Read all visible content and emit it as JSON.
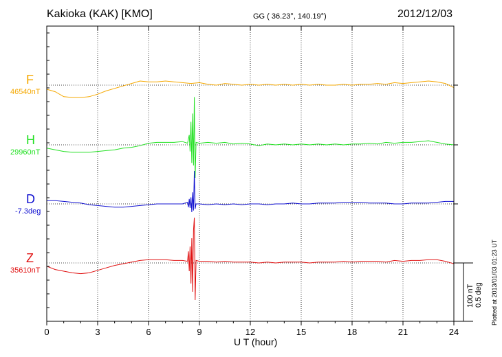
{
  "header": {
    "station": "Kakioka (KAK)  [KMO]",
    "coords": "GG ( 36.23°, 140.19°)",
    "date": "2012/12/03"
  },
  "scale": {
    "nt": "100 nT",
    "deg": "0.5 deg"
  },
  "plotted": "Plotted at 2013/01/03 01:23 UT",
  "chart_data": {
    "type": "line",
    "title": "Kakioka (KAK)  [KMO]",
    "xlabel": "U T (hour)",
    "ylabel": "",
    "xlim": [
      0,
      24
    ],
    "xticks": [
      0,
      3,
      6,
      9,
      12,
      15,
      18,
      21,
      24
    ],
    "grid": true,
    "units_note": "Trace values are offsets from each component's baseline in nT (D in deg*200, i.e. 100 nT = 0.5 deg)",
    "series": [
      {
        "name": "F",
        "baseline_label": "46540nT",
        "color": "#f5a800",
        "points": [
          [
            0,
            -5
          ],
          [
            0.5,
            -8
          ],
          [
            1,
            -14
          ],
          [
            1.5,
            -15
          ],
          [
            2,
            -15
          ],
          [
            2.5,
            -14
          ],
          [
            3,
            -11
          ],
          [
            3.5,
            -7
          ],
          [
            4,
            -4
          ],
          [
            4.5,
            -1
          ],
          [
            5,
            2
          ],
          [
            5.5,
            5
          ],
          [
            6,
            4
          ],
          [
            6.5,
            4
          ],
          [
            7,
            5
          ],
          [
            7.5,
            4
          ],
          [
            8,
            3
          ],
          [
            8.5,
            2
          ],
          [
            9,
            3
          ],
          [
            9.5,
            1
          ],
          [
            10,
            0
          ],
          [
            10.5,
            2
          ],
          [
            11,
            1
          ],
          [
            11.5,
            0
          ],
          [
            12,
            1
          ],
          [
            12.5,
            0
          ],
          [
            13,
            1
          ],
          [
            13.5,
            0
          ],
          [
            14,
            1
          ],
          [
            14.5,
            0
          ],
          [
            15,
            1
          ],
          [
            15.5,
            0
          ],
          [
            16,
            1
          ],
          [
            16.5,
            0
          ],
          [
            17,
            0
          ],
          [
            17.5,
            1
          ],
          [
            18,
            0
          ],
          [
            18.5,
            1
          ],
          [
            19,
            1
          ],
          [
            19.5,
            2
          ],
          [
            20,
            1
          ],
          [
            20.5,
            3
          ],
          [
            21,
            2
          ],
          [
            21.5,
            3
          ],
          [
            22,
            4
          ],
          [
            22.5,
            5
          ],
          [
            23,
            4
          ],
          [
            23.5,
            2
          ],
          [
            24,
            -3
          ]
        ]
      },
      {
        "name": "H",
        "baseline_label": "29960nT",
        "color": "#22e022",
        "points": [
          [
            0,
            -4
          ],
          [
            0.5,
            -6
          ],
          [
            1,
            -8
          ],
          [
            1.5,
            -9
          ],
          [
            2,
            -9
          ],
          [
            2.5,
            -9
          ],
          [
            3,
            -8
          ],
          [
            3.5,
            -7
          ],
          [
            4,
            -6
          ],
          [
            4.5,
            -4
          ],
          [
            5,
            -3
          ],
          [
            5.5,
            -1
          ],
          [
            6,
            2
          ],
          [
            6.5,
            3
          ],
          [
            7,
            3
          ],
          [
            7.5,
            3
          ],
          [
            8,
            4
          ],
          [
            8.3,
            2
          ],
          [
            8.4,
            12
          ],
          [
            8.45,
            -8
          ],
          [
            8.5,
            28
          ],
          [
            8.55,
            -22
          ],
          [
            8.6,
            38
          ],
          [
            8.65,
            -25
          ],
          [
            8.7,
            58
          ],
          [
            8.75,
            -40
          ],
          [
            8.8,
            3
          ],
          [
            9,
            2
          ],
          [
            9.5,
            3
          ],
          [
            10,
            2
          ],
          [
            10.5,
            3
          ],
          [
            11,
            1
          ],
          [
            11.5,
            2
          ],
          [
            12,
            1
          ],
          [
            12.5,
            -1
          ],
          [
            13,
            1
          ],
          [
            13.5,
            0
          ],
          [
            14,
            1
          ],
          [
            14.5,
            0
          ],
          [
            15,
            1
          ],
          [
            15.5,
            0
          ],
          [
            16,
            1
          ],
          [
            16.5,
            0
          ],
          [
            17,
            1
          ],
          [
            17.5,
            0
          ],
          [
            18,
            1
          ],
          [
            18.5,
            1
          ],
          [
            19,
            2
          ],
          [
            19.5,
            1
          ],
          [
            20,
            3
          ],
          [
            20.5,
            2
          ],
          [
            21,
            3
          ],
          [
            21.5,
            3
          ],
          [
            22,
            4
          ],
          [
            22.5,
            5
          ],
          [
            23,
            3
          ],
          [
            23.5,
            1
          ],
          [
            24,
            0
          ]
        ]
      },
      {
        "name": "D",
        "baseline_label": "-7.3deg",
        "color": "#1010d0",
        "points": [
          [
            0,
            4
          ],
          [
            0.5,
            4
          ],
          [
            1,
            3
          ],
          [
            1.5,
            2
          ],
          [
            2,
            1
          ],
          [
            2.5,
            -1
          ],
          [
            3,
            -2
          ],
          [
            3.5,
            -3
          ],
          [
            4,
            -4
          ],
          [
            4.5,
            -4
          ],
          [
            5,
            -3
          ],
          [
            5.5,
            -2
          ],
          [
            6,
            -1
          ],
          [
            6.5,
            0
          ],
          [
            7,
            0
          ],
          [
            7.5,
            0
          ],
          [
            8,
            0
          ],
          [
            8.3,
            2
          ],
          [
            8.35,
            -4
          ],
          [
            8.4,
            6
          ],
          [
            8.45,
            -5
          ],
          [
            8.5,
            8
          ],
          [
            8.55,
            -10
          ],
          [
            8.6,
            14
          ],
          [
            8.65,
            -8
          ],
          [
            8.7,
            40
          ],
          [
            8.75,
            -6
          ],
          [
            8.8,
            0
          ],
          [
            9,
            0
          ],
          [
            9.5,
            -1
          ],
          [
            10,
            0
          ],
          [
            10.5,
            -1
          ],
          [
            11,
            0
          ],
          [
            11.5,
            -1
          ],
          [
            12,
            0
          ],
          [
            12.5,
            0
          ],
          [
            13,
            -1
          ],
          [
            13.5,
            0
          ],
          [
            14,
            0
          ],
          [
            14.5,
            1
          ],
          [
            15,
            0
          ],
          [
            15.5,
            0
          ],
          [
            16,
            1
          ],
          [
            16.5,
            1
          ],
          [
            17,
            1
          ],
          [
            17.5,
            2
          ],
          [
            18,
            2
          ],
          [
            18.5,
            2
          ],
          [
            19,
            1
          ],
          [
            19.5,
            1
          ],
          [
            20,
            1
          ],
          [
            20.5,
            0
          ],
          [
            21,
            0
          ],
          [
            21.5,
            1
          ],
          [
            22,
            1
          ],
          [
            22.5,
            1
          ],
          [
            23,
            2
          ],
          [
            23.5,
            3
          ],
          [
            24,
            3
          ]
        ]
      },
      {
        "name": "Z",
        "baseline_label": "35610nT",
        "color": "#e01010",
        "points": [
          [
            0,
            -4
          ],
          [
            0.5,
            -8
          ],
          [
            1,
            -10
          ],
          [
            1.5,
            -12
          ],
          [
            2,
            -13
          ],
          [
            2.5,
            -12
          ],
          [
            3,
            -9
          ],
          [
            3.5,
            -6
          ],
          [
            4,
            -3
          ],
          [
            4.5,
            -1
          ],
          [
            5,
            1
          ],
          [
            5.5,
            3
          ],
          [
            6,
            4
          ],
          [
            6.5,
            4
          ],
          [
            7,
            4
          ],
          [
            7.5,
            3
          ],
          [
            8,
            3
          ],
          [
            8.3,
            2
          ],
          [
            8.35,
            14
          ],
          [
            8.4,
            -10
          ],
          [
            8.45,
            20
          ],
          [
            8.5,
            -25
          ],
          [
            8.55,
            30
          ],
          [
            8.6,
            -35
          ],
          [
            8.65,
            40
          ],
          [
            8.7,
            55
          ],
          [
            8.75,
            -45
          ],
          [
            8.8,
            3
          ],
          [
            9,
            2
          ],
          [
            9.5,
            2
          ],
          [
            10,
            1
          ],
          [
            10.5,
            2
          ],
          [
            11,
            1
          ],
          [
            11.5,
            1
          ],
          [
            12,
            1
          ],
          [
            12.5,
            0
          ],
          [
            13,
            1
          ],
          [
            13.5,
            0
          ],
          [
            14,
            1
          ],
          [
            14.5,
            1
          ],
          [
            15,
            1
          ],
          [
            15.5,
            0
          ],
          [
            16,
            1
          ],
          [
            16.5,
            1
          ],
          [
            17,
            1
          ],
          [
            17.5,
            2
          ],
          [
            18,
            1
          ],
          [
            18.5,
            2
          ],
          [
            19,
            2
          ],
          [
            19.5,
            2
          ],
          [
            20,
            1
          ],
          [
            20.5,
            3
          ],
          [
            21,
            2
          ],
          [
            21.5,
            3
          ],
          [
            22,
            3
          ],
          [
            22.5,
            4
          ],
          [
            23,
            4
          ],
          [
            23.5,
            2
          ],
          [
            24,
            -1
          ]
        ]
      }
    ]
  }
}
